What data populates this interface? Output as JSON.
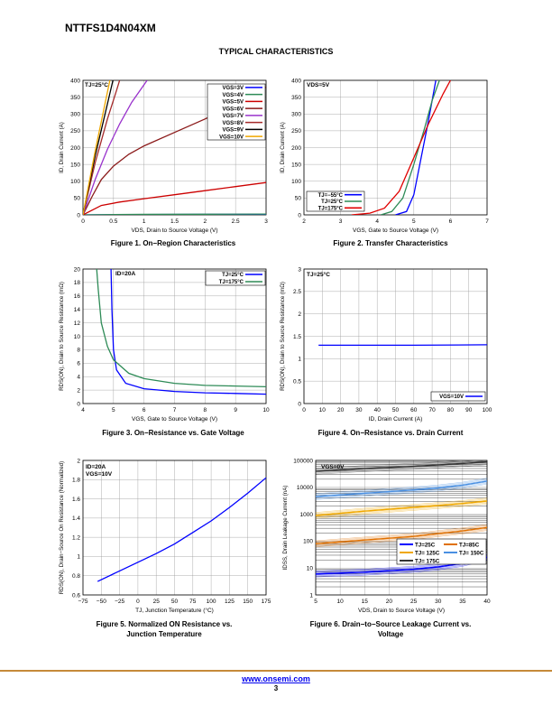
{
  "document": {
    "part_number": "NTTFS1D4N04XM",
    "section_title": "TYPICAL CHARACTERISTICS",
    "footer_url": "www.onsemi.com",
    "page_number": "3"
  },
  "captions": [
    "Figure 1. On−Region Characteristics",
    "Figure 2. Transfer Characteristics",
    "Figure 3. On−Resistance vs. Gate Voltage",
    "Figure 4. On−Resistance vs. Drain Current",
    "Figure 5. Normalized ON Resistance vs. Junction Temperature",
    "Figure 6. Drain−to−Source Leakage Current vs. Voltage"
  ],
  "chart_data": [
    {
      "type": "line",
      "id": "fig1",
      "xlabel": "VDS, Drain to Source Voltage (V)",
      "ylabel": "ID, Drain Current (A)",
      "xlim": [
        0,
        3
      ],
      "ylim": [
        0,
        400
      ],
      "xticks": [
        0,
        0.5,
        1,
        1.5,
        2,
        2.5,
        3
      ],
      "xtick_labels": [
        "0",
        "0.5",
        "1",
        "1.5",
        "2",
        "2.5",
        "3"
      ],
      "yticks": [
        0,
        50,
        100,
        150,
        200,
        250,
        300,
        350,
        400
      ],
      "annotations": [
        "TJ=25°C"
      ],
      "legend_placement": "top-right",
      "series": [
        {
          "name": "VGS=3V",
          "color": "#0000ff",
          "points": [
            [
              0,
              0
            ],
            [
              1,
              1
            ],
            [
              2,
              1.5
            ],
            [
              3,
              2
            ]
          ]
        },
        {
          "name": "VGS=4V",
          "color": "#2e8b57",
          "points": [
            [
              0,
              0
            ],
            [
              1,
              1.5
            ],
            [
              2,
              2
            ],
            [
              3,
              2.5
            ]
          ]
        },
        {
          "name": "VGS=5V",
          "color": "#cc0000",
          "points": [
            [
              0,
              0
            ],
            [
              0.3,
              28
            ],
            [
              0.6,
              38
            ],
            [
              1,
              48
            ],
            [
              1.5,
              60
            ],
            [
              2,
              72
            ],
            [
              2.5,
              84
            ],
            [
              3,
              96
            ]
          ]
        },
        {
          "name": "VGS=6V",
          "color": "#8b1a1a",
          "points": [
            [
              0,
              0
            ],
            [
              0.15,
              55
            ],
            [
              0.3,
              105
            ],
            [
              0.5,
              145
            ],
            [
              0.75,
              180
            ],
            [
              1,
              205
            ],
            [
              1.5,
              245
            ],
            [
              2,
              285
            ],
            [
              2.5,
              330
            ],
            [
              3,
              380
            ]
          ]
        },
        {
          "name": "VGS=7V",
          "color": "#9932cc",
          "points": [
            [
              0,
              0
            ],
            [
              0.2,
              105
            ],
            [
              0.4,
              195
            ],
            [
              0.6,
              270
            ],
            [
              0.8,
              335
            ],
            [
              1.05,
              400
            ]
          ]
        },
        {
          "name": "VGS=8V",
          "color": "#a52a2a",
          "points": [
            [
              0,
              0
            ],
            [
              0.2,
              155
            ],
            [
              0.4,
              285
            ],
            [
              0.55,
              370
            ],
            [
              0.6,
              400
            ]
          ]
        },
        {
          "name": "VGS=9V",
          "color": "#000000",
          "points": [
            [
              0,
              0
            ],
            [
              0.2,
              175
            ],
            [
              0.4,
              330
            ],
            [
              0.49,
              400
            ]
          ]
        },
        {
          "name": "VGS=10V",
          "color": "#f0a800",
          "points": [
            [
              0,
              0
            ],
            [
              0.2,
              190
            ],
            [
              0.4,
              365
            ],
            [
              0.44,
              400
            ]
          ]
        }
      ]
    },
    {
      "type": "line",
      "id": "fig2",
      "xlabel": "VGS, Gate to Source Voltage (V)",
      "ylabel": "ID, Drain Current (A)",
      "xlim": [
        2,
        7
      ],
      "ylim": [
        0,
        400
      ],
      "xticks": [
        2,
        3,
        4,
        5,
        6,
        7
      ],
      "xtick_labels": [
        "2",
        "3",
        "4",
        "5",
        "6",
        "7"
      ],
      "yticks": [
        0,
        50,
        100,
        150,
        200,
        250,
        300,
        350,
        400
      ],
      "annotations": [
        "VDS=5V"
      ],
      "legend_placement": "bottom-left",
      "series": [
        {
          "name": "TJ=−55°C",
          "color": "#0000ff",
          "points": [
            [
              4.5,
              0
            ],
            [
              4.8,
              10
            ],
            [
              5.0,
              60
            ],
            [
              5.2,
              170
            ],
            [
              5.4,
              280
            ],
            [
              5.6,
              400
            ]
          ]
        },
        {
          "name": "TJ=25°C",
          "color": "#2e8b57",
          "points": [
            [
              4.1,
              0
            ],
            [
              4.4,
              10
            ],
            [
              4.7,
              50
            ],
            [
              5.0,
              150
            ],
            [
              5.3,
              260
            ],
            [
              5.5,
              340
            ],
            [
              5.7,
              400
            ]
          ]
        },
        {
          "name": "TJ=175°C",
          "color": "#e00000",
          "points": [
            [
              3.3,
              0
            ],
            [
              3.8,
              5
            ],
            [
              4.2,
              20
            ],
            [
              4.6,
              70
            ],
            [
              5.0,
              170
            ],
            [
              5.4,
              270
            ],
            [
              5.8,
              360
            ],
            [
              6.0,
              400
            ]
          ]
        }
      ]
    },
    {
      "type": "line",
      "id": "fig3",
      "xlabel": "VGS, Gate to Source Voltage (V)",
      "ylabel": "RDS(ON), Drain to Source Resistance (mΩ)",
      "xlim": [
        4,
        10
      ],
      "ylim": [
        0,
        20
      ],
      "xticks": [
        4,
        5,
        6,
        7,
        8,
        9,
        10
      ],
      "xtick_labels": [
        "4",
        "5",
        "6",
        "7",
        "8",
        "9",
        "10"
      ],
      "yticks": [
        0,
        2,
        4,
        6,
        8,
        10,
        12,
        14,
        16,
        18,
        20
      ],
      "annotations": [
        "ID=20A"
      ],
      "legend_placement": "top-right",
      "series": [
        {
          "name": "TJ=25°C",
          "color": "#0000ff",
          "points": [
            [
              4.92,
              20
            ],
            [
              4.95,
              14
            ],
            [
              5.0,
              8
            ],
            [
              5.1,
              5
            ],
            [
              5.4,
              3
            ],
            [
              6,
              2.2
            ],
            [
              7,
              1.8
            ],
            [
              8,
              1.6
            ],
            [
              9,
              1.5
            ],
            [
              10,
              1.4
            ]
          ]
        },
        {
          "name": "TJ=175°C",
          "color": "#2e8b57",
          "points": [
            [
              4.45,
              20
            ],
            [
              4.5,
              17
            ],
            [
              4.6,
              12
            ],
            [
              4.8,
              8.5
            ],
            [
              5.0,
              6.5
            ],
            [
              5.5,
              4.5
            ],
            [
              6,
              3.7
            ],
            [
              7,
              3.0
            ],
            [
              8,
              2.7
            ],
            [
              9,
              2.6
            ],
            [
              10,
              2.5
            ]
          ]
        }
      ]
    },
    {
      "type": "line",
      "id": "fig4",
      "xlabel": "ID, Drain Current (A)",
      "ylabel": "RDS(ON), Drain to Source Resistance (mΩ)",
      "xlim": [
        0,
        100
      ],
      "ylim": [
        0,
        3
      ],
      "xticks": [
        0,
        10,
        20,
        30,
        40,
        50,
        60,
        70,
        80,
        90,
        100
      ],
      "xtick_labels": [
        "0",
        "10",
        "20",
        "30",
        "40",
        "50",
        "60",
        "70",
        "80",
        "90",
        "100"
      ],
      "yticks": [
        0,
        0.5,
        1,
        1.5,
        2,
        2.5,
        3
      ],
      "ytick_labels": [
        "0",
        "0.5",
        "1",
        "1.5",
        "2",
        "2.5",
        "3"
      ],
      "annotations": [
        "TJ=25°C"
      ],
      "legend_placement": "bottom-right",
      "series": [
        {
          "name": "VGS=10V",
          "color": "#0000ff",
          "points": [
            [
              8,
              1.3
            ],
            [
              30,
              1.3
            ],
            [
              60,
              1.3
            ],
            [
              100,
              1.31
            ]
          ]
        }
      ]
    },
    {
      "type": "line",
      "id": "fig5",
      "xlabel": "TJ, Junction Temperature (°C)",
      "ylabel": "RDS(ON), Drain−Source On Resistance (Normalized)",
      "xlim": [
        -75,
        175
      ],
      "ylim": [
        0.6,
        2
      ],
      "xticks": [
        -75,
        -50,
        -25,
        0,
        25,
        50,
        75,
        100,
        125,
        150,
        175
      ],
      "xtick_labels": [
        "−75",
        "−50",
        "−25",
        "0",
        "25",
        "50",
        "75",
        "100",
        "125",
        "150",
        "175"
      ],
      "yticks": [
        0.6,
        0.8,
        1,
        1.2,
        1.4,
        1.6,
        1.8,
        2
      ],
      "ytick_labels": [
        "0.6",
        "0.8",
        "1",
        "1.2",
        "1.4",
        "1.6",
        "1.8",
        "2"
      ],
      "annotations": [
        "ID=20A",
        "VGS=10V"
      ],
      "series": [
        {
          "color": "#0000ff",
          "points": [
            [
              -55,
              0.74
            ],
            [
              -25,
              0.85
            ],
            [
              0,
              0.94
            ],
            [
              25,
              1.03
            ],
            [
              50,
              1.13
            ],
            [
              75,
              1.25
            ],
            [
              100,
              1.37
            ],
            [
              125,
              1.51
            ],
            [
              150,
              1.66
            ],
            [
              175,
              1.82
            ]
          ]
        }
      ]
    },
    {
      "type": "line",
      "id": "fig6",
      "xlabel": "VDS, Drain to Source Voltage (V)",
      "ylabel": "IDSS, Drain Leakage Current (nA)",
      "xlim": [
        5,
        40
      ],
      "ylim": [
        1,
        100000
      ],
      "yscale": "log",
      "xticks": [
        5,
        10,
        15,
        20,
        25,
        30,
        35,
        40
      ],
      "xtick_labels": [
        "5",
        "10",
        "15",
        "20",
        "25",
        "30",
        "35",
        "40"
      ],
      "yticks": [
        1,
        10,
        100,
        1000,
        10000,
        100000
      ],
      "ytick_labels": [
        "1",
        "10",
        "100",
        "1000",
        "10000",
        "100000"
      ],
      "annotations": [
        "VGS=0V"
      ],
      "legend_placement": "bottom-right",
      "series": [
        {
          "name": "TJ=25C",
          "color": "#0000ff",
          "points": [
            [
              5,
              6
            ],
            [
              15,
              7
            ],
            [
              25,
              9
            ],
            [
              30,
              11
            ],
            [
              35,
              15
            ],
            [
              40,
              25
            ]
          ]
        },
        {
          "name": "TJ=85C",
          "color": "#e07000",
          "points": [
            [
              5,
              80
            ],
            [
              15,
              110
            ],
            [
              25,
              150
            ],
            [
              30,
              190
            ],
            [
              35,
              240
            ],
            [
              40,
              320
            ]
          ]
        },
        {
          "name": "TJ= 125C",
          "color": "#f0a800",
          "points": [
            [
              5,
              900
            ],
            [
              15,
              1300
            ],
            [
              25,
              1800
            ],
            [
              30,
              2100
            ],
            [
              35,
              2500
            ],
            [
              40,
              3100
            ]
          ]
        },
        {
          "name": "TJ= 150C",
          "color": "#4a90e2",
          "points": [
            [
              5,
              4500
            ],
            [
              15,
              6000
            ],
            [
              25,
              8000
            ],
            [
              30,
              9500
            ],
            [
              35,
              12000
            ],
            [
              40,
              17000
            ]
          ]
        },
        {
          "name": "TJ= 175C",
          "color": "#333333",
          "points": [
            [
              5,
              40000
            ],
            [
              15,
              50000
            ],
            [
              25,
              60000
            ],
            [
              30,
              68000
            ],
            [
              35,
              77000
            ],
            [
              40,
              90000
            ]
          ]
        }
      ]
    }
  ]
}
